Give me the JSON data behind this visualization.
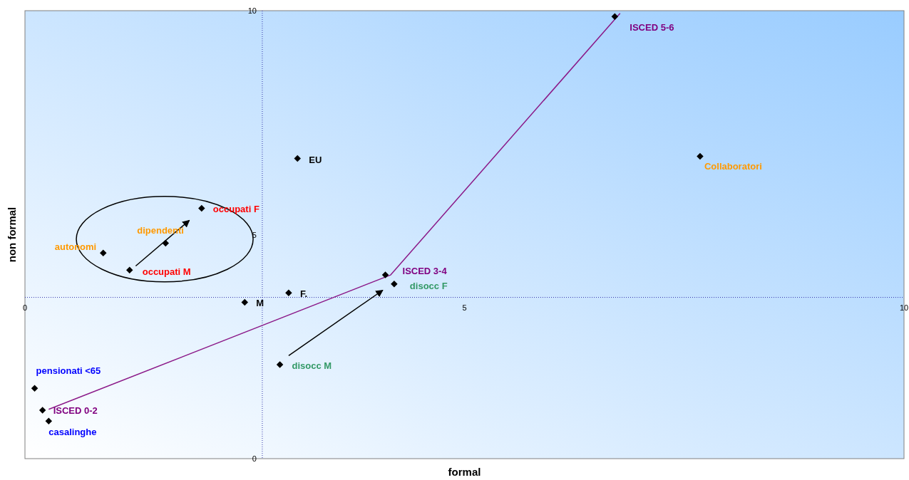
{
  "chart_data": {
    "type": "scatter",
    "xlabel": "formal",
    "ylabel": "non formal",
    "xlim": [
      0,
      10
    ],
    "ylim": [
      0,
      10
    ],
    "xticks": [
      0,
      5,
      10
    ],
    "yticks": [
      0,
      5,
      10
    ],
    "grid": false,
    "marker": "diamond",
    "ref_lines": [
      {
        "axis": "x",
        "value": 2.7,
        "color": "#3333aa",
        "line_style": "dotted"
      },
      {
        "axis": "y",
        "value": 3.6,
        "color": "#3333aa",
        "line_style": "dotted"
      }
    ],
    "series": [
      {
        "color": "#000000",
        "x": [
          6.71,
          3.1,
          7.68,
          2.01,
          1.6,
          0.89,
          1.19,
          4.1,
          4.2,
          3.0,
          2.5,
          2.9,
          0.11,
          0.2,
          0.27
        ],
        "values": [
          9.87,
          6.7,
          6.75,
          5.59,
          4.81,
          4.59,
          4.21,
          4.1,
          3.9,
          3.7,
          3.49,
          2.1,
          1.57,
          1.08,
          0.84
        ]
      },
      {
        "type": "line",
        "marker": "none",
        "color": "#8b1a89",
        "x": [
          0.27,
          4.16,
          6.77
        ],
        "values": [
          1.1,
          4.1,
          9.94
        ]
      }
    ],
    "annotations": [
      {
        "text": "ISCED 5-6",
        "x": 6.71,
        "y": 9.87
      },
      {
        "text": "EU",
        "x": 3.1,
        "y": 6.7
      },
      {
        "text": "Collaboratori",
        "x": 7.68,
        "y": 6.75
      },
      {
        "text": "occupati F",
        "x": 2.01,
        "y": 5.59
      },
      {
        "text": "dipendenti",
        "x": 1.6,
        "y": 4.81
      },
      {
        "text": "autonomi",
        "x": 0.89,
        "y": 4.59
      },
      {
        "text": "occupati M",
        "x": 1.19,
        "y": 4.21
      },
      {
        "text": "ISCED 3-4",
        "x": 4.1,
        "y": 4.1
      },
      {
        "text": "disocc F",
        "x": 4.2,
        "y": 3.9
      },
      {
        "text": "F.",
        "x": 3.0,
        "y": 3.7
      },
      {
        "text": "M",
        "x": 2.5,
        "y": 3.49
      },
      {
        "text": "disocc M",
        "x": 2.9,
        "y": 2.1
      },
      {
        "text": "pensionati <65",
        "x": 0.11,
        "y": 1.57
      },
      {
        "text": "ISCED 0-2",
        "x": 0.2,
        "y": 1.08
      },
      {
        "text": "casalinghe",
        "x": 0.27,
        "y": 0.84
      }
    ]
  }
}
